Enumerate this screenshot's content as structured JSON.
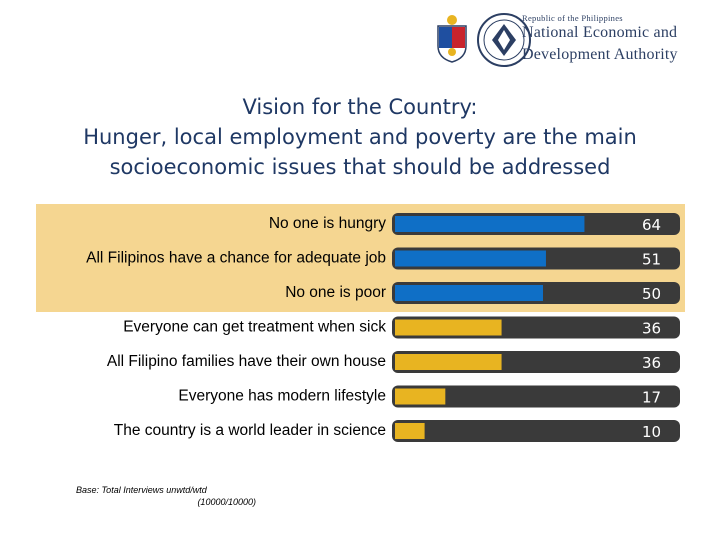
{
  "header": {
    "logo_line1": "Republic of the Philippines",
    "logo_line2": "National Economic and",
    "logo_line3": "Development Authority"
  },
  "title": {
    "line1": "Vision for the Country:",
    "line2": "Hunger, local employment and poverty are the main",
    "line3": "socioeconomic issues that should be addressed"
  },
  "footnote": {
    "line1": "Base: Total Interviews unwtd/wtd",
    "line2": "(10000/10000)"
  },
  "chart_data": {
    "type": "bar",
    "orientation": "horizontal",
    "categories": [
      "No one is hungry",
      "All Filipinos have a chance for adequate job",
      "No one is poor",
      "Everyone can get treatment when sick",
      "All Filipino families have their own house",
      "Everyone has modern lifestyle",
      "The country is a world leader in science"
    ],
    "values": [
      64,
      51,
      50,
      36,
      36,
      17,
      10
    ],
    "value_labels": [
      "64",
      "51",
      "50",
      "36",
      "36",
      "17",
      "10"
    ],
    "xlim": [
      0,
      100
    ],
    "highlighted_top": 3,
    "colors": {
      "highlight_bar": "#0f6fc6",
      "other_bar": "#e8b421",
      "track": "#3a3a3a",
      "band": "#f5d691"
    },
    "title": "",
    "xlabel": "",
    "ylabel": "",
    "grid": false,
    "legend": "none"
  }
}
